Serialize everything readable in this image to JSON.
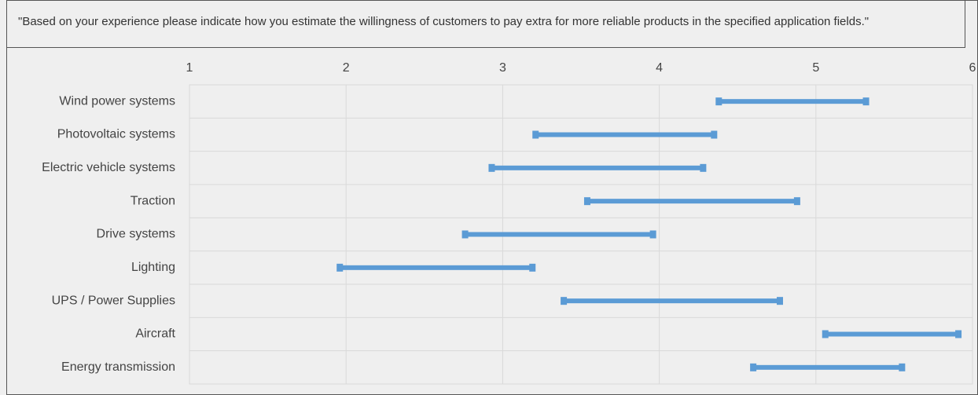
{
  "chart_data": {
    "type": "range",
    "title": "\"Based on your experience please indicate how you estimate the willingness of customers to pay extra for more reliable products in the specified application fields.\"",
    "categories": [
      "Wind power systems",
      "Photovoltaic systems",
      "Electric vehicle systems",
      "Traction",
      "Drive systems",
      "Lighting",
      "UPS / Power Supplies",
      "Aircraft",
      "Energy transmission"
    ],
    "low": [
      4.38,
      3.21,
      2.93,
      3.54,
      2.76,
      1.96,
      3.39,
      5.06,
      4.6
    ],
    "high": [
      5.32,
      4.35,
      4.28,
      4.88,
      3.96,
      3.19,
      4.77,
      5.91,
      5.55
    ],
    "color": "#5b9bd5",
    "xlim": [
      1,
      6
    ],
    "xticks": [
      1,
      2,
      3,
      4,
      5,
      6
    ],
    "grid": true
  }
}
